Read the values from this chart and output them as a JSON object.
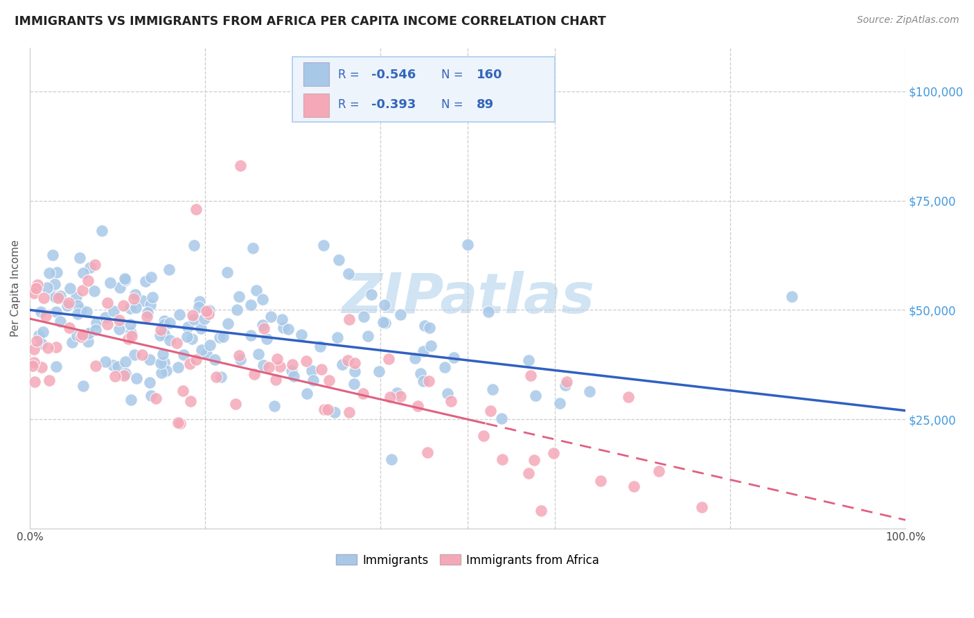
{
  "title": "IMMIGRANTS VS IMMIGRANTS FROM AFRICA PER CAPITA INCOME CORRELATION CHART",
  "source": "Source: ZipAtlas.com",
  "ylabel": "Per Capita Income",
  "r_immigrants": -0.546,
  "n_immigrants": 160,
  "r_africa": -0.393,
  "n_africa": 89,
  "color_immigrants": "#a8c8e8",
  "color_africa": "#f4a8b8",
  "color_line_immigrants": "#3060c0",
  "color_line_africa": "#e06080",
  "color_axis_right": "#4499dd",
  "watermark_color": "#d0e4f4",
  "background_color": "#ffffff",
  "xlim": [
    0.0,
    1.0
  ],
  "ylim": [
    0,
    110000
  ],
  "legend_box_color": "#eef4fc",
  "legend_border_color": "#aaccee",
  "legend_text_color": "#3366bb",
  "legend_r_color": "#3366bb",
  "legend_n_color": "#3366bb"
}
